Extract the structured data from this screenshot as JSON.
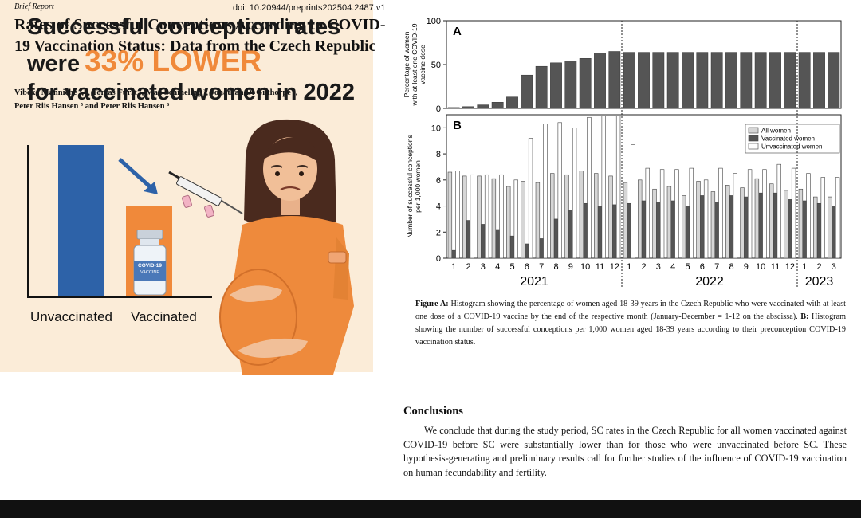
{
  "header": {
    "report_type": "Brief Report",
    "doi": "doi: 10.20944/preprints202504.2487.v1"
  },
  "title": "Rates of Successful Conceptions According to COVID-19 Vaccination Status: Data from the Czech Republic",
  "authors": {
    "line1": "Vibeke Manniche ¹,*, Tomáš Fürst ², Max Schmeling ³, Jonathan D. Gilthorpe ⁴,",
    "line2": "Peter Riis Hansen ⁵ and Peter Riis Hansen ⁶"
  },
  "poster": {
    "line1": "Successful conception rates",
    "line2_pre": "were",
    "line2_highlight": "33% LOWER",
    "line3": "for vaccinated women in 2022",
    "label_unvaccinated": "Unvaccinated",
    "label_vaccinated": "Vaccinated",
    "vial_label": "COVID-19",
    "vial_sub": "VACCINE",
    "colors": {
      "background": "#fbecd8",
      "blue": "#2d62a8",
      "orange": "#f0893a"
    }
  },
  "figure": {
    "panel_a_letter": "A",
    "panel_b_letter": "B",
    "panel_a_ylabel": [
      "Percentage of women",
      "with at least one COVID-19",
      "vaccine dose"
    ],
    "panel_b_ylabel": [
      "Number of successful conceptions",
      "per 1,000 women"
    ],
    "legend": [
      "All women",
      "Vaccinated women",
      "Unvaccinated women"
    ],
    "years": [
      "2021",
      "2022",
      "2023"
    ],
    "month_ticks": [
      "1",
      "2",
      "3",
      "4",
      "5",
      "6",
      "7",
      "8",
      "9",
      "10",
      "11",
      "12",
      "1",
      "2",
      "3",
      "4",
      "5",
      "6",
      "7",
      "8",
      "9",
      "10",
      "11",
      "12",
      "1",
      "2",
      "3"
    ]
  },
  "chart_data": [
    {
      "type": "bar",
      "panel": "A",
      "ylabel": "Percentage of women with at least one COVID-19 vaccine dose",
      "ylim": [
        0,
        100
      ],
      "yticks": [
        0,
        50,
        100
      ],
      "categories": [
        "1",
        "2",
        "3",
        "4",
        "5",
        "6",
        "7",
        "8",
        "9",
        "10",
        "11",
        "12",
        "1",
        "2",
        "3",
        "4",
        "5",
        "6",
        "7",
        "8",
        "9",
        "10",
        "11",
        "12",
        "1",
        "2",
        "3"
      ],
      "values": [
        1,
        2,
        4,
        7,
        13,
        38,
        48,
        52,
        54,
        57,
        63,
        65,
        64,
        64,
        64,
        64,
        64,
        64,
        64,
        64,
        64,
        64,
        64,
        64,
        64,
        64,
        64
      ]
    },
    {
      "type": "bar",
      "panel": "B",
      "ylabel": "Number of successful conceptions per 1,000 women",
      "ylim": [
        0,
        11
      ],
      "yticks": [
        0,
        2,
        4,
        6,
        8,
        10
      ],
      "categories": [
        "1",
        "2",
        "3",
        "4",
        "5",
        "6",
        "7",
        "8",
        "9",
        "10",
        "11",
        "12",
        "1",
        "2",
        "3",
        "4",
        "5",
        "6",
        "7",
        "8",
        "9",
        "10",
        "11",
        "12",
        "1",
        "2",
        "3"
      ],
      "series": [
        {
          "name": "All women",
          "values": [
            6.6,
            6.3,
            6.3,
            6.1,
            5.5,
            5.9,
            5.8,
            6.5,
            6.4,
            6.7,
            6.5,
            6.3,
            5.8,
            6.0,
            5.3,
            5.5,
            4.8,
            5.9,
            5.1,
            5.6,
            5.4,
            6.1,
            5.7,
            5.2,
            5.3,
            4.7,
            4.7
          ]
        },
        {
          "name": "Vaccinated women",
          "values": [
            0.6,
            2.9,
            2.6,
            2.2,
            1.7,
            1.1,
            1.5,
            3.0,
            3.7,
            4.2,
            4.0,
            4.1,
            4.2,
            4.4,
            4.3,
            4.4,
            4.0,
            4.8,
            4.3,
            4.8,
            4.7,
            5.0,
            5.0,
            4.5,
            4.4,
            4.2,
            4.0
          ]
        },
        {
          "name": "Unvaccinated women",
          "values": [
            6.7,
            6.4,
            6.4,
            6.4,
            6.0,
            9.2,
            10.3,
            10.4,
            10.0,
            10.8,
            10.9,
            10.9,
            8.7,
            6.9,
            6.8,
            6.8,
            6.9,
            6.0,
            6.9,
            6.5,
            6.8,
            6.8,
            7.2,
            6.9,
            6.5,
            6.2,
            6.2
          ]
        }
      ]
    }
  ],
  "caption": {
    "label_a": "Figure A:",
    "text_a": "Histogram showing the percentage of women aged 18-39 years in the Czech Republic who were vaccinated with at least one dose of a COVID-19 vaccine by the end of the respective month (January-December = 1-12 on the abscissa).",
    "label_b": "B:",
    "text_b": "Histogram showing the number of successful conceptions per 1,000 women aged 18-39 years according to their preconception COVID-19 vaccination status."
  },
  "conclusions": {
    "heading": "Conclusions",
    "text": "We conclude that during the study period, SC rates in the Czech Republic for all women vaccinated against COVID-19 before SC were substantially lower than for those who were unvaccinated before SC. These hypothesis-generating and preliminary results call for further studies of the influence of COVID-19 vaccination on human fecundability and fertility."
  }
}
